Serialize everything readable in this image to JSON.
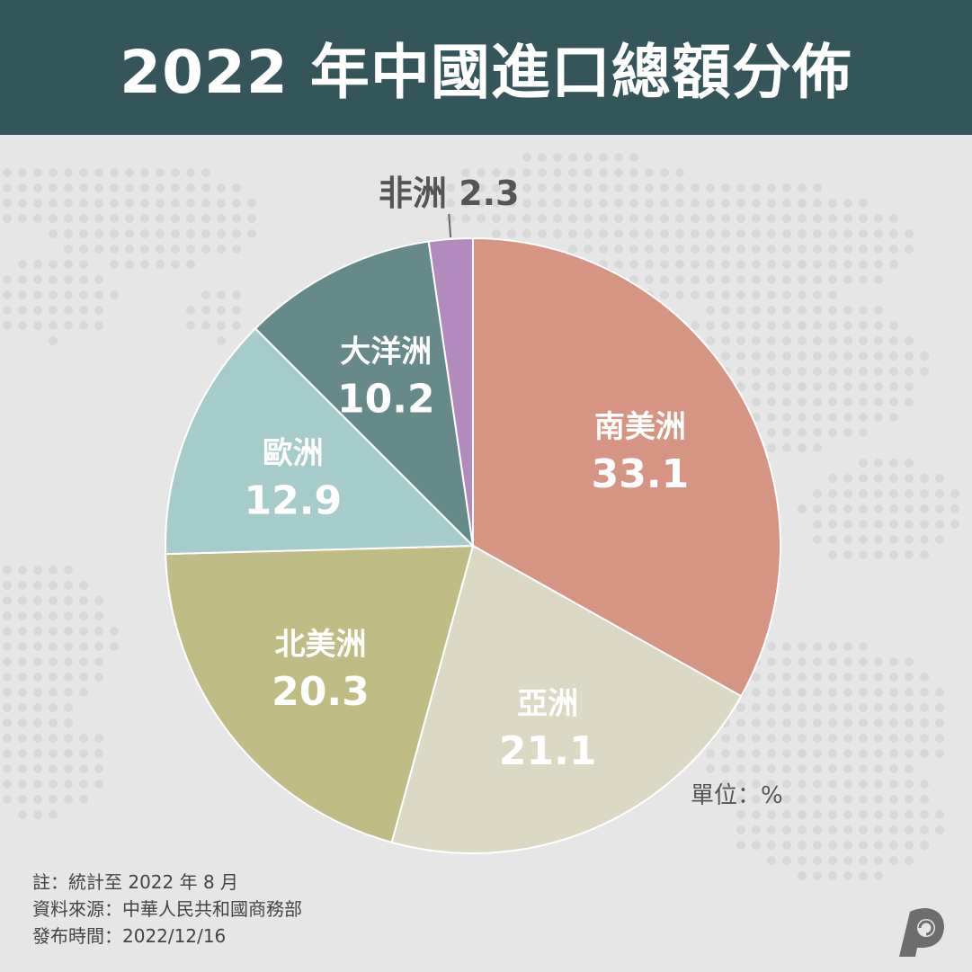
{
  "header": {
    "title": "2022 年中國進口總額分佈"
  },
  "unit_label": "單位：%",
  "notes": {
    "note": "註：統計至 2022 年 8 月",
    "source": "資料來源：中華人民共和國商務部",
    "published": "發布時間：2022/12/16"
  },
  "colors": {
    "header_bg": "#34565a",
    "background": "#e6e6e6",
    "map_dots": "#d8d8d8"
  },
  "chart_data": {
    "type": "pie",
    "title": "2022 年中國進口總額分佈",
    "unit": "%",
    "start": "12 o'clock, clockwise",
    "slices": [
      {
        "label": "南美洲",
        "value": 33.1,
        "display": "33.1",
        "color": "#d69583"
      },
      {
        "label": "亞洲",
        "value": 21.1,
        "display": "21.1",
        "color": "#dbd8c4"
      },
      {
        "label": "北美洲",
        "value": 20.3,
        "display": "20.3",
        "color": "#c0bc86"
      },
      {
        "label": "歐洲",
        "value": 12.9,
        "display": "12.9",
        "color": "#a6cbcb"
      },
      {
        "label": "大洋洲",
        "value": 10.2,
        "display": "10.2",
        "color": "#66898a"
      },
      {
        "label": "非洲",
        "value": 2.3,
        "display": "2.3",
        "color": "#b38abd"
      }
    ]
  }
}
